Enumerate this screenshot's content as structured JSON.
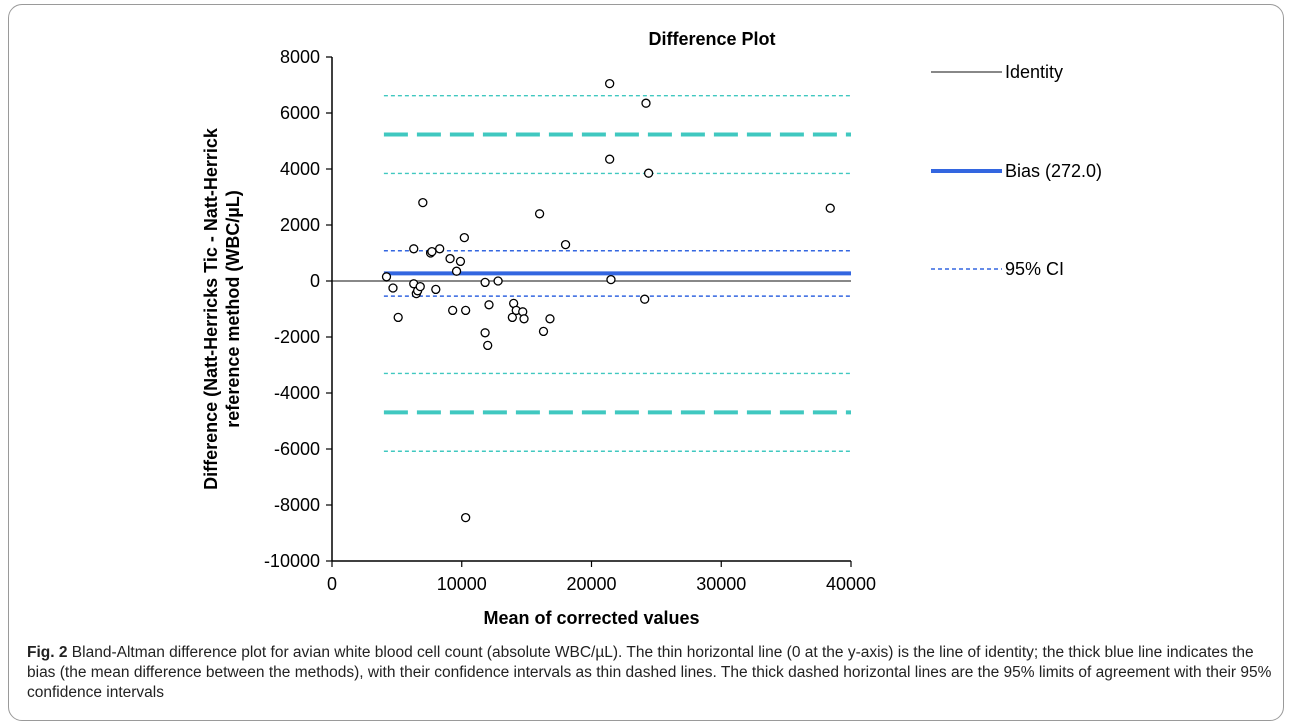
{
  "chart_data": {
    "type": "scatter",
    "title": "Difference Plot",
    "xlabel": "Mean of corrected values",
    "ylabel_line1": "Difference (Natt-Herricks Tic - Natt-Herrick",
    "ylabel_line2": "reference method (WBC/µL)",
    "xlim": [
      0,
      40000
    ],
    "ylim": [
      -10000,
      8000
    ],
    "xticks": [
      0,
      10000,
      20000,
      30000,
      40000
    ],
    "yticks": [
      -10000,
      -8000,
      -6000,
      -4000,
      -2000,
      0,
      2000,
      4000,
      6000,
      8000
    ],
    "grid": false,
    "legend_position": "right",
    "points": [
      [
        4200,
        150
      ],
      [
        4700,
        -250
      ],
      [
        5100,
        -1300
      ],
      [
        6300,
        1150
      ],
      [
        6300,
        -100
      ],
      [
        6500,
        -450
      ],
      [
        6600,
        -350
      ],
      [
        6800,
        -200
      ],
      [
        7000,
        2800
      ],
      [
        7600,
        1000
      ],
      [
        7700,
        1050
      ],
      [
        8000,
        -300
      ],
      [
        8300,
        1150
      ],
      [
        9100,
        800
      ],
      [
        9300,
        -1050
      ],
      [
        9600,
        350
      ],
      [
        9900,
        700
      ],
      [
        10200,
        1550
      ],
      [
        10300,
        -1050
      ],
      [
        10300,
        -8450
      ],
      [
        11800,
        -50
      ],
      [
        11800,
        -1850
      ],
      [
        12000,
        -2300
      ],
      [
        12100,
        -850
      ],
      [
        12800,
        0
      ],
      [
        13900,
        -1300
      ],
      [
        14000,
        -800
      ],
      [
        14200,
        -1050
      ],
      [
        14700,
        -1100
      ],
      [
        14800,
        -1350
      ],
      [
        16000,
        2400
      ],
      [
        16300,
        -1800
      ],
      [
        16800,
        -1350
      ],
      [
        18000,
        1300
      ],
      [
        21400,
        7050
      ],
      [
        21400,
        4350
      ],
      [
        21500,
        50
      ],
      [
        24100,
        -650
      ],
      [
        24200,
        6350
      ],
      [
        24400,
        3850
      ],
      [
        38400,
        2600
      ]
    ],
    "lines": [
      {
        "name": "Identity",
        "y": 0,
        "style": "identity",
        "color": "#888888"
      },
      {
        "name": "Bias (272.0)",
        "y": 272,
        "style": "bias",
        "color": "#3366e0"
      },
      {
        "name": "95% CI",
        "y": 1080,
        "style": "bias-ci",
        "color": "#3366e0"
      },
      {
        "y": -540,
        "style": "bias-ci",
        "color": "#3366e0"
      },
      {
        "y": 5230,
        "style": "loa",
        "color": "#40c8c0"
      },
      {
        "y": 6620,
        "style": "loa-ci",
        "color": "#40c8c0"
      },
      {
        "y": 3840,
        "style": "loa-ci",
        "color": "#40c8c0"
      },
      {
        "y": -4690,
        "style": "loa",
        "color": "#40c8c0"
      },
      {
        "y": -3300,
        "style": "loa-ci",
        "color": "#40c8c0"
      },
      {
        "y": -6080,
        "style": "loa-ci",
        "color": "#40c8c0"
      }
    ],
    "legend": [
      {
        "label": "Identity",
        "style": "identity",
        "color": "#888888"
      },
      {
        "label": "Bias (272.0)",
        "style": "bias",
        "color": "#3366e0"
      },
      {
        "label": "95% CI",
        "style": "bias-ci",
        "color": "#3366e0"
      }
    ]
  },
  "caption": {
    "label": "Fig. 2",
    "text": "Bland-Altman difference plot for avian white blood cell count (absolute WBC/µL). The thin horizontal line (0 at the y-axis) is the line of identity; the thick blue line indicates the bias (the mean difference between the methods), with their confidence intervals as thin dashed lines. The thick dashed horizontal lines are the 95% limits of agreement with their 95% confidence intervals"
  }
}
